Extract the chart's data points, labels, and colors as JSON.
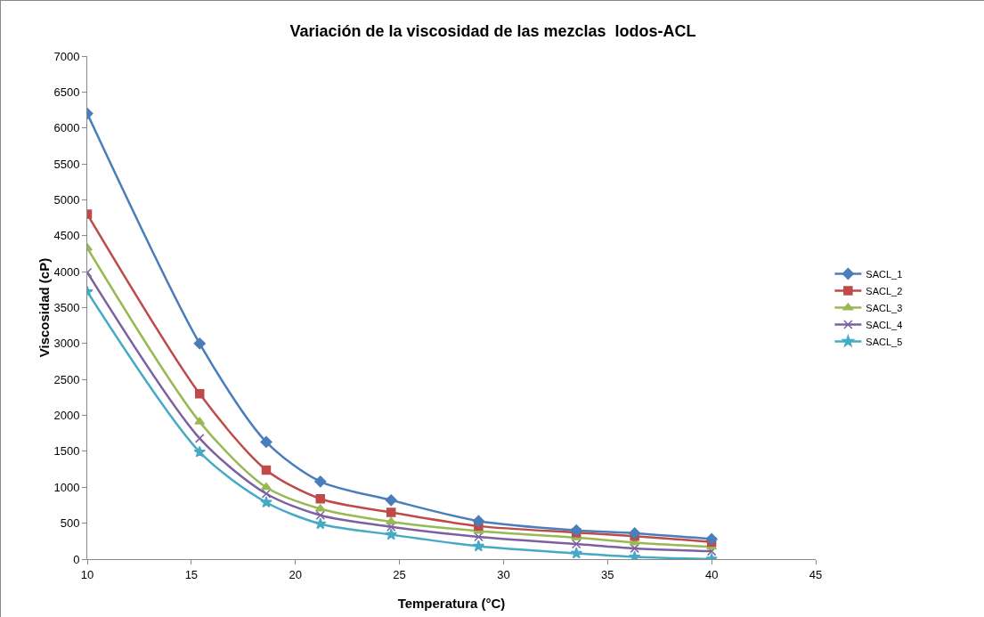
{
  "chart_data": {
    "type": "line",
    "title": "Variación de la viscosidad de las mezclas  lodos-ACL",
    "xlabel": "Temperatura (°C)",
    "ylabel": "Viscosidad (cP)",
    "x": [
      10,
      15.4,
      18.6,
      21.2,
      24.6,
      28.8,
      33.5,
      36.3,
      40
    ],
    "series": [
      {
        "name": "SACL_1",
        "color": "#4a7ebb",
        "marker": "diamond",
        "values": [
          6200,
          3000,
          1630,
          1080,
          820,
          530,
          400,
          360,
          280
        ]
      },
      {
        "name": "SACL_2",
        "color": "#be4b48",
        "marker": "square",
        "values": [
          4800,
          2300,
          1240,
          840,
          650,
          460,
          370,
          320,
          240
        ]
      },
      {
        "name": "SACL_3",
        "color": "#98b954",
        "marker": "triangle",
        "values": [
          4330,
          1910,
          1000,
          700,
          520,
          390,
          300,
          230,
          170
        ]
      },
      {
        "name": "SACL_4",
        "color": "#7d60a0",
        "marker": "cross",
        "values": [
          3990,
          1680,
          910,
          610,
          450,
          310,
          210,
          150,
          110
        ]
      },
      {
        "name": "SACL_5",
        "color": "#46aac5",
        "marker": "star",
        "values": [
          3720,
          1490,
          790,
          490,
          340,
          180,
          80,
          30,
          0
        ]
      }
    ],
    "xlim": [
      10,
      45
    ],
    "xticks": [
      10,
      15,
      20,
      25,
      30,
      35,
      40,
      45
    ],
    "ylim": [
      0,
      7000
    ],
    "yticks": [
      0,
      500,
      1000,
      1500,
      2000,
      2500,
      3000,
      3500,
      4000,
      4500,
      5000,
      5500,
      6000,
      6500,
      7000
    ],
    "grid": false,
    "legend": "right",
    "line_style": "solid"
  }
}
